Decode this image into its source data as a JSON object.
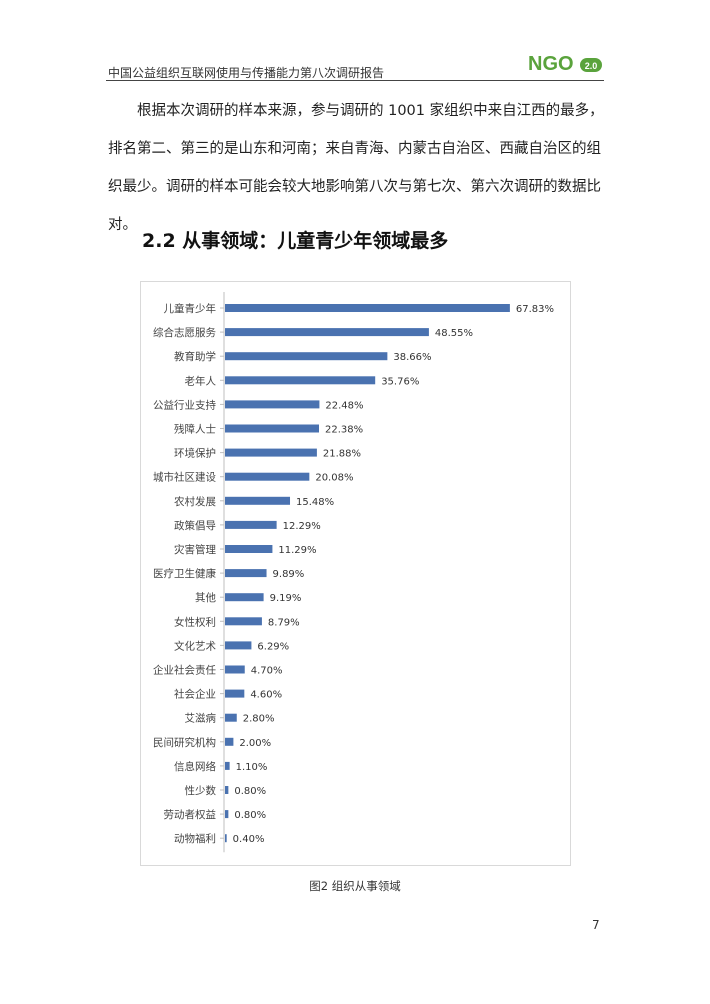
{
  "header": {
    "title": "中国公益组织互联网使用与传播能力第八次调研报告",
    "logo_text": "NGO",
    "logo_badge": "2.0",
    "logo_color": "#5aa33c"
  },
  "paragraph": "根据本次调研的样本来源，参与调研的 1001 家组织中来自江西的最多，排名第二、第三的是山东和河南；来自青海、内蒙古自治区、西藏自治区的组织最少。调研的样本可能会较大地影响第八次与第七次、第六次调研的数据比对。",
  "section_title": "2.2  从事领域：儿童青少年领域最多",
  "chart_data": {
    "type": "bar",
    "orientation": "horizontal",
    "bar_color": "#4a72b0",
    "categories": [
      "儿童青少年",
      "综合志愿服务",
      "教育助学",
      "老年人",
      "公益行业支持",
      "残障人士",
      "环境保护",
      "城市社区建设",
      "农村发展",
      "政策倡导",
      "灾害管理",
      "医疗卫生健康",
      "其他",
      "女性权利",
      "文化艺术",
      "企业社会责任",
      "社会企业",
      "艾滋病",
      "民间研究机构",
      "信息网络",
      "性少数",
      "劳动者权益",
      "动物福利"
    ],
    "values": [
      67.83,
      48.55,
      38.66,
      35.76,
      22.48,
      22.38,
      21.88,
      20.08,
      15.48,
      12.29,
      11.29,
      9.89,
      9.19,
      8.79,
      6.29,
      4.7,
      4.6,
      2.8,
      2.0,
      1.1,
      0.8,
      0.8,
      0.4
    ],
    "value_labels": [
      "67.83%",
      "48.55%",
      "38.66%",
      "35.76%",
      "22.48%",
      "22.38%",
      "21.88%",
      "20.08%",
      "15.48%",
      "12.29%",
      "11.29%",
      "9.89%",
      "9.19%",
      "8.79%",
      "6.29%",
      "4.70%",
      "4.60%",
      "2.80%",
      "2.00%",
      "1.10%",
      "0.80%",
      "0.80%",
      "0.40%"
    ],
    "xlim": [
      0,
      100
    ],
    "grid": false,
    "legend": "none"
  },
  "caption": "图2 组织从事领域",
  "page_number": "7"
}
